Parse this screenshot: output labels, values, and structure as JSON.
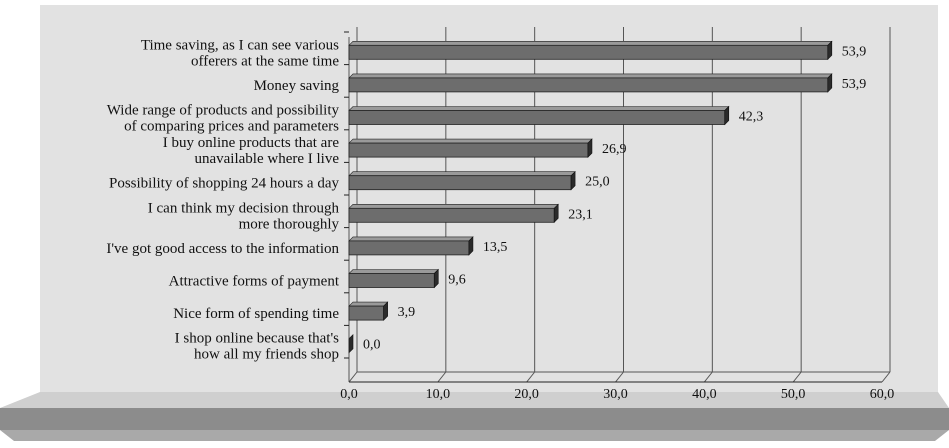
{
  "chart_data": {
    "type": "bar",
    "orientation": "horizontal",
    "categories": [
      [
        "Time saving, as I can see various",
        "offerers at the same time"
      ],
      [
        "Money saving"
      ],
      [
        "Wide range of products and possibility",
        "of comparing prices and parameters"
      ],
      [
        "I buy online products that are",
        "unavailable where I live"
      ],
      [
        "Possibility of shopping 24 hours a day"
      ],
      [
        "I can think my decision through",
        "more thoroughly"
      ],
      [
        "I've got good access to the information"
      ],
      [
        "Attractive forms of payment"
      ],
      [
        "Nice form of spending time"
      ],
      [
        "I shop online because that's",
        "how all my friends shop"
      ]
    ],
    "values": [
      53.9,
      53.9,
      42.3,
      26.9,
      25.0,
      23.1,
      13.5,
      9.6,
      3.9,
      0.0
    ],
    "value_labels": [
      "53,9",
      "53,9",
      "42,3",
      "26,9",
      "25,0",
      "23,1",
      "13,5",
      "9,6",
      "3,9",
      "0,0"
    ],
    "xticks": [
      0,
      10,
      20,
      30,
      40,
      50,
      60
    ],
    "xtick_labels": [
      "0,0",
      "10,0",
      "20,0",
      "30,0",
      "40,0",
      "50,0",
      "60,0"
    ],
    "xlim": [
      0,
      60
    ],
    "title": "",
    "xlabel": "",
    "ylabel": "",
    "grid": "vertical gridlines",
    "legend": "none",
    "colors": {
      "wall": "#e2e2e2",
      "floor_top": "#cfcfcf",
      "floor_front": "#8c8c8c",
      "bar_top": "#9a9a9a",
      "bar_face": "#6d6d6d",
      "bar_end": "#2b2b2b",
      "grid": "#555555"
    }
  }
}
